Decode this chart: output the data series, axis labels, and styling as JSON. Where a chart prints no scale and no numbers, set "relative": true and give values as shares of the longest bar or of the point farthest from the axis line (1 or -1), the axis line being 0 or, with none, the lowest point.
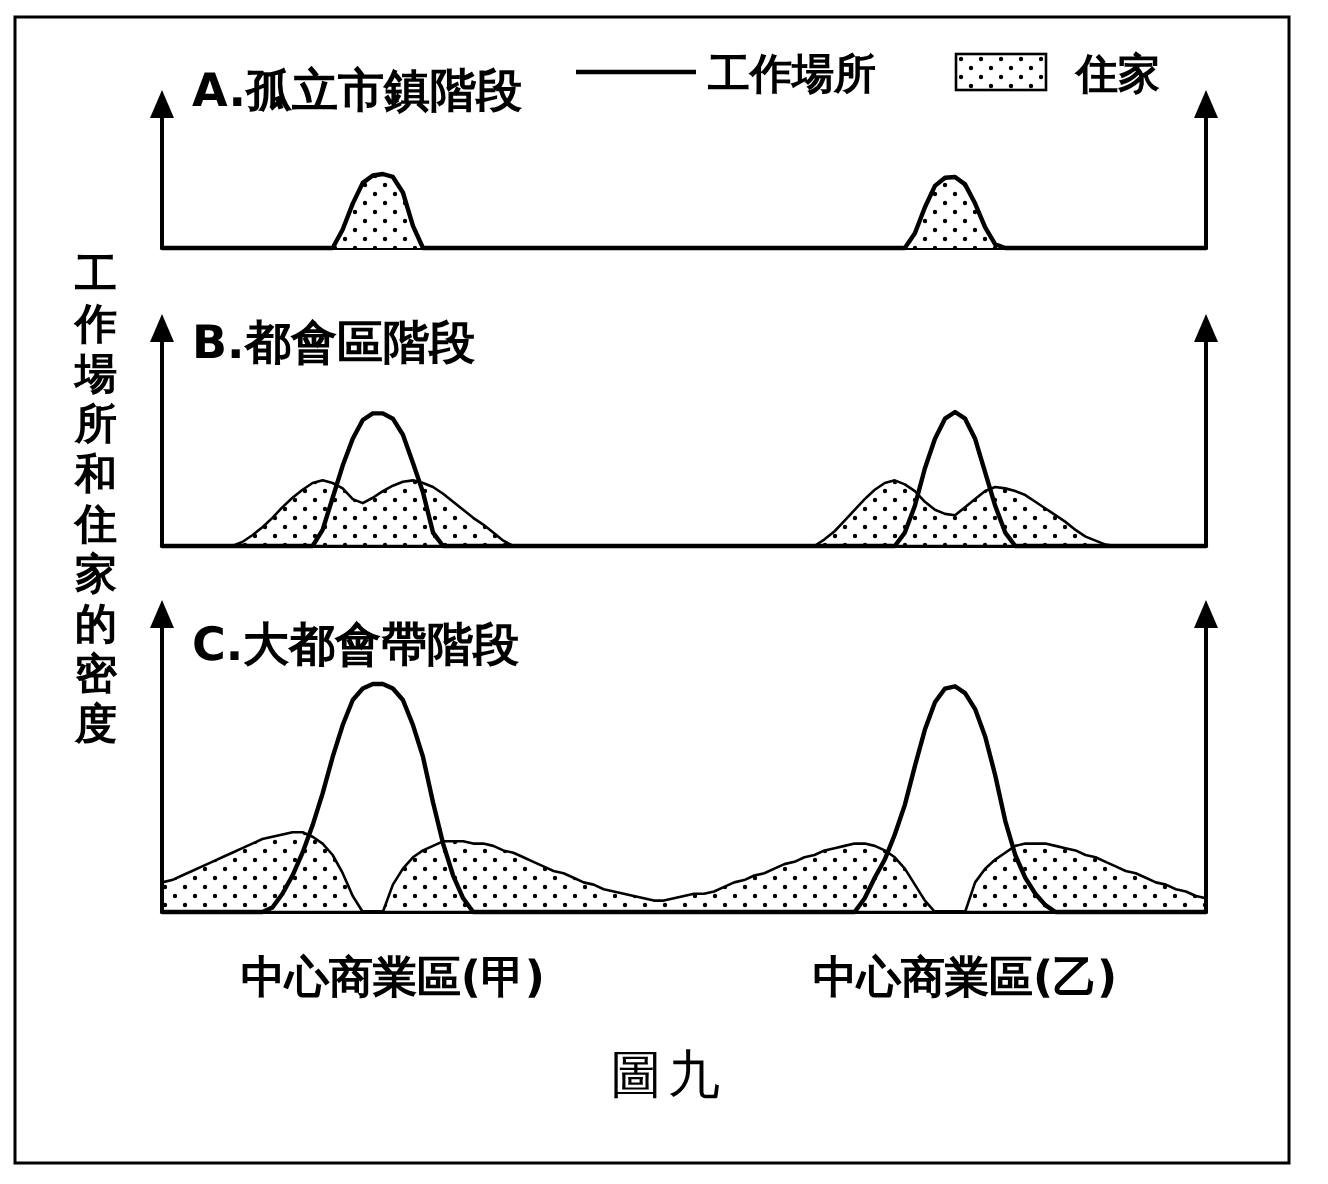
{
  "chart_data": [
    {
      "type": "area",
      "title": "A.孤立市鎮階段",
      "relative": true,
      "tick_labels": false,
      "legend": "top right",
      "categories": [
        null,
        null,
        null,
        null,
        null,
        null,
        null,
        null,
        null,
        null,
        null,
        null,
        null,
        null,
        null,
        null,
        null,
        null,
        null,
        null,
        null,
        null,
        null,
        null,
        null,
        null,
        null,
        null,
        null,
        null,
        null,
        null,
        null,
        null,
        null,
        null,
        null,
        null,
        null,
        null,
        null,
        null,
        null,
        null,
        null,
        null,
        null,
        null,
        null,
        null,
        null,
        null,
        null,
        null,
        null,
        null,
        null,
        null,
        null,
        null,
        null,
        null,
        null,
        null,
        null,
        null,
        null,
        null,
        null,
        null,
        null,
        null,
        null,
        null,
        null,
        null,
        null,
        null,
        null,
        null,
        null,
        null,
        null,
        null,
        null,
        null,
        null,
        null,
        null,
        null,
        null,
        null,
        null,
        null,
        null,
        null,
        null,
        null,
        null,
        null,
        null,
        null,
        null,
        null,
        null
      ],
      "series": [
        {
          "name": "住家",
          "type": "area",
          "color": "#000000",
          "values": [
            null,
            null,
            null,
            null,
            null,
            null,
            null,
            null,
            null,
            null,
            null,
            null,
            null,
            null,
            null,
            null,
            null,
            0,
            0.25,
            0.6,
            0.88,
            0.98,
            1,
            0.96,
            0.75,
            0.3,
            0,
            0,
            0,
            0,
            0,
            0,
            0,
            0,
            0,
            0,
            0,
            0,
            0,
            0,
            0,
            0,
            0,
            0,
            0,
            0,
            0,
            0,
            0,
            0,
            0,
            0,
            0,
            0,
            0,
            0,
            0,
            0,
            0,
            0,
            0,
            0,
            0,
            0,
            0,
            0,
            0,
            0,
            0,
            0,
            0,
            0,
            0,
            0,
            0,
            0.2,
            0.55,
            0.84,
            0.95,
            0.96,
            0.86,
            0.6,
            0.28,
            0.05,
            0,
            null,
            null,
            null,
            null,
            null,
            null,
            null,
            null,
            null,
            null,
            null,
            null,
            null,
            null,
            null,
            null,
            null,
            null,
            null,
            null
          ]
        },
        {
          "name": "工作場所",
          "type": "line",
          "color": "#000000",
          "values": [
            0,
            0,
            0,
            0,
            0,
            0,
            0,
            0,
            0,
            0,
            0,
            0,
            0,
            0,
            0,
            0,
            0,
            0,
            0.25,
            0.6,
            0.88,
            0.98,
            1,
            0.96,
            0.75,
            0.3,
            0,
            0,
            0,
            0,
            0,
            0,
            0,
            0,
            0,
            0,
            0,
            0,
            0,
            0,
            0,
            0,
            0,
            0,
            0,
            0,
            0,
            0,
            0,
            0,
            0,
            0,
            0,
            0,
            0,
            0,
            0,
            0,
            0,
            0,
            0,
            0,
            0,
            0,
            0,
            0,
            0,
            0,
            0,
            0,
            0,
            0,
            0,
            0,
            0,
            0.2,
            0.55,
            0.84,
            0.95,
            0.96,
            0.86,
            0.6,
            0.28,
            0.05,
            0,
            0,
            0,
            0,
            0,
            0,
            0,
            0,
            0,
            0,
            0,
            0,
            0,
            0,
            0,
            0,
            0,
            0,
            0,
            0,
            0
          ]
        }
      ]
    },
    {
      "type": "area",
      "title": "B.都會區階段",
      "ylabel": "工作場所和住家的密度",
      "relative": true,
      "tick_labels": false,
      "categories": [
        null,
        null,
        null,
        null,
        null,
        null,
        null,
        null,
        null,
        null,
        null,
        null,
        null,
        null,
        null,
        null,
        null,
        null,
        null,
        null,
        null,
        null,
        null,
        null,
        null,
        null,
        null,
        null,
        null,
        null,
        null,
        null,
        null,
        null,
        null,
        null,
        null,
        null,
        null,
        null,
        null,
        null,
        null,
        null,
        null,
        null,
        null,
        null,
        null,
        null,
        null,
        null,
        null,
        null,
        null,
        null,
        null,
        null,
        null,
        null,
        null,
        null,
        null,
        null,
        null,
        null,
        null,
        null,
        null,
        null,
        null,
        null,
        null,
        null,
        null,
        null,
        null,
        null,
        null,
        null,
        null,
        null,
        null,
        null,
        null,
        null,
        null,
        null,
        null,
        null,
        null,
        null,
        null,
        null,
        null,
        null,
        null,
        null,
        null,
        null,
        null,
        null,
        null,
        null,
        null
      ],
      "series": [
        {
          "type": "area",
          "color": "#000000",
          "values": [
            0,
            0,
            0,
            0,
            0,
            0,
            0,
            0,
            0.03,
            0.08,
            0.14,
            0.21,
            0.29,
            0.36,
            0.42,
            0.47,
            0.49,
            0.47,
            0.43,
            0.35,
            0.32,
            0.36,
            0.41,
            0.45,
            0.48,
            0.49,
            0.47,
            0.44,
            0.39,
            0.33,
            0.27,
            0.21,
            0.16,
            0.1,
            0.04,
            0,
            0,
            0,
            0,
            0,
            0,
            0,
            0,
            0,
            0,
            0,
            0,
            0,
            0,
            0,
            0,
            0,
            0,
            0,
            0,
            0,
            0,
            0,
            0,
            0,
            0,
            0,
            0,
            0,
            0,
            0,
            0.05,
            0.11,
            0.19,
            0.27,
            0.35,
            0.42,
            0.47,
            0.49,
            0.46,
            0.41,
            0.33,
            0.27,
            0.24,
            0.23,
            0.29,
            0.35,
            0.41,
            0.44,
            0.43,
            0.41,
            0.38,
            0.33,
            0.28,
            0.23,
            0.18,
            0.12,
            0.07,
            0.04,
            0.01,
            0,
            0,
            0,
            0,
            0,
            0,
            0,
            0,
            0,
            0
          ]
        },
        {
          "type": "line",
          "color": "#000000",
          "values": [
            0,
            0,
            0,
            0,
            0,
            0,
            0,
            0,
            0,
            0,
            0,
            0,
            0,
            0,
            0,
            0,
            0.12,
            0.36,
            0.6,
            0.8,
            0.94,
            0.99,
            0.99,
            0.95,
            0.83,
            0.62,
            0.4,
            0.1,
            0,
            0,
            0,
            0,
            0,
            0,
            0,
            0,
            0,
            0,
            0,
            0,
            0,
            0,
            0,
            0,
            0,
            0,
            0,
            0,
            0,
            0,
            0,
            0,
            0,
            0,
            0,
            0,
            0,
            0,
            0,
            0,
            0,
            0,
            0,
            0,
            0,
            0,
            0,
            0,
            0,
            0,
            0,
            0,
            0,
            0,
            0.1,
            0.3,
            0.58,
            0.8,
            0.95,
            1,
            0.95,
            0.8,
            0.55,
            0.3,
            0.1,
            0,
            0,
            0,
            0,
            0,
            0,
            0,
            0,
            0,
            0,
            0,
            0,
            0,
            0,
            0,
            0,
            0,
            0,
            0,
            0
          ]
        }
      ]
    },
    {
      "type": "area",
      "title": "C.大都會帶階段",
      "relative": true,
      "tick_labels": "x",
      "annotations": [
        "圖九"
      ],
      "categories": [
        null,
        null,
        null,
        null,
        null,
        null,
        null,
        null,
        null,
        null,
        null,
        null,
        null,
        null,
        null,
        null,
        null,
        null,
        null,
        null,
        null,
        null,
        null,
        "中心商業區(甲)",
        null,
        null,
        null,
        null,
        null,
        null,
        null,
        null,
        null,
        null,
        null,
        null,
        null,
        null,
        null,
        null,
        null,
        null,
        null,
        null,
        null,
        null,
        null,
        null,
        null,
        null,
        null,
        null,
        null,
        null,
        null,
        null,
        null,
        null,
        null,
        null,
        null,
        null,
        null,
        null,
        null,
        null,
        null,
        null,
        null,
        null,
        null,
        null,
        null,
        null,
        null,
        null,
        null,
        null,
        null,
        null,
        "中心商業區(乙)",
        null,
        null,
        null,
        null,
        null,
        null,
        null,
        null,
        null,
        null,
        null,
        null,
        null,
        null,
        null,
        null,
        null,
        null,
        null,
        null,
        null,
        null,
        null,
        null
      ],
      "series": [
        {
          "type": "area",
          "color": "#000000",
          "values": [
            0.13,
            0.14,
            0.16,
            0.18,
            0.2,
            0.22,
            0.24,
            0.26,
            0.28,
            0.3,
            0.32,
            0.33,
            0.34,
            0.35,
            0.35,
            0.33,
            0.3,
            0.25,
            0.17,
            0.07,
            0,
            0,
            0,
            0.12,
            0.19,
            0.24,
            0.27,
            0.29,
            0.31,
            0.31,
            0.31,
            0.3,
            0.3,
            0.29,
            0.27,
            0.26,
            0.24,
            0.22,
            0.2,
            0.18,
            0.17,
            0.15,
            0.13,
            0.12,
            0.1,
            0.09,
            0.08,
            0.07,
            0.06,
            0.05,
            0.05,
            0.06,
            0.07,
            0.08,
            0.08,
            0.09,
            0.11,
            0.13,
            0.14,
            0.16,
            0.17,
            0.19,
            0.21,
            0.22,
            0.24,
            0.25,
            0.27,
            0.28,
            0.29,
            0.3,
            0.3,
            0.29,
            0.27,
            0.24,
            0.19,
            0.12,
            0.05,
            0,
            0,
            0,
            0,
            0.13,
            0.19,
            0.23,
            0.26,
            0.29,
            0.3,
            0.3,
            0.3,
            0.29,
            0.28,
            0.27,
            0.25,
            0.24,
            0.22,
            0.2,
            0.18,
            0.17,
            0.15,
            0.13,
            0.12,
            0.1,
            0.09,
            0.07,
            0.06
          ]
        },
        {
          "type": "line",
          "color": "#000000",
          "values": [
            0,
            0,
            0,
            0,
            0,
            0,
            0,
            0,
            0,
            0,
            0,
            0.02,
            0.08,
            0.16,
            0.26,
            0.38,
            0.52,
            0.68,
            0.82,
            0.93,
            0.98,
            1,
            1,
            0.98,
            0.93,
            0.82,
            0.68,
            0.48,
            0.3,
            0.16,
            0.06,
            0,
            0,
            0,
            0,
            0,
            0,
            0,
            0,
            0,
            0,
            0,
            0,
            0,
            0,
            0,
            0,
            0,
            0,
            0,
            0,
            0,
            0,
            0,
            0,
            0,
            0,
            0,
            0,
            0,
            0,
            0,
            0,
            0,
            0,
            0,
            0,
            0,
            0,
            0,
            0.06,
            0.15,
            0.23,
            0.34,
            0.47,
            0.64,
            0.8,
            0.92,
            0.98,
            0.99,
            0.96,
            0.89,
            0.77,
            0.6,
            0.4,
            0.25,
            0.15,
            0.08,
            0.03,
            0,
            0,
            0,
            0,
            0,
            0,
            0,
            0,
            0,
            0,
            0,
            0,
            0,
            0,
            0,
            0
          ]
        }
      ]
    }
  ]
}
